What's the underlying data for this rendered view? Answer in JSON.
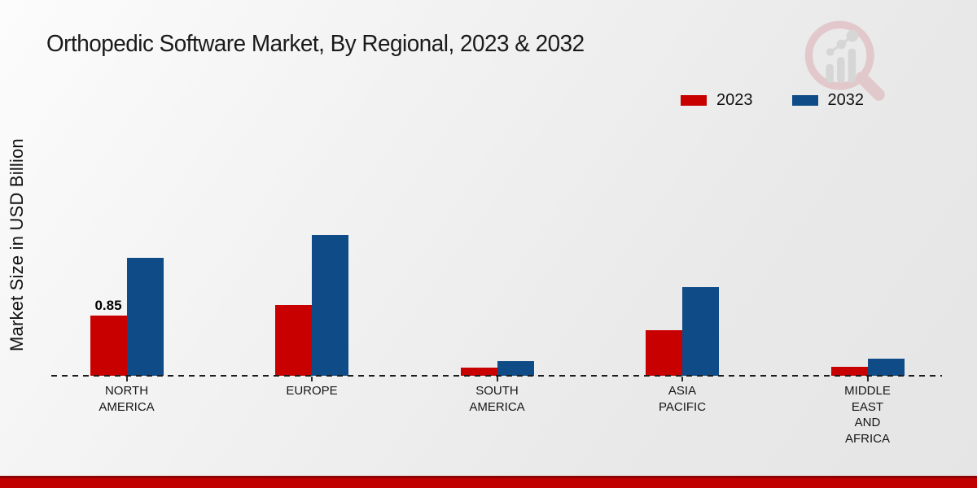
{
  "page": {
    "title": "Orthopedic Software Market, By Regional, 2023 & 2032",
    "y_axis_label": "Market Size in USD Billion",
    "background_color": "#ececec",
    "footer_accent_color": "#c00000",
    "logo_icon": "magnifier-bar-chart-logo"
  },
  "chart_data": {
    "type": "bar",
    "title": "Orthopedic Software Market, By Regional, 2023 & 2032",
    "xlabel": "",
    "ylabel": "Market Size in USD Billion",
    "categories": [
      "North America",
      "Europe",
      "South America",
      "Asia Pacific",
      "Middle East and Africa"
    ],
    "category_display_lines": [
      [
        "NORTH",
        "AMERICA"
      ],
      [
        "EUROPE"
      ],
      [
        "SOUTH",
        "AMERICA"
      ],
      [
        "ASIA",
        "PACIFIC"
      ],
      [
        "MIDDLE",
        "EAST",
        "AND",
        "AFRICA"
      ]
    ],
    "series": [
      {
        "name": "2023",
        "color": "#c80000",
        "values": [
          0.85,
          1.0,
          0.11,
          0.64,
          0.13
        ]
      },
      {
        "name": "2032",
        "color": "#0f4c87",
        "values": [
          1.67,
          1.99,
          0.21,
          1.25,
          0.24
        ]
      }
    ],
    "data_labels": [
      {
        "series_index": 0,
        "category_index": 0,
        "text": "0.85"
      }
    ],
    "ylim": [
      0,
      2.2
    ],
    "grid": false,
    "legend_position": "top-right",
    "baseline_style": "dashed"
  }
}
